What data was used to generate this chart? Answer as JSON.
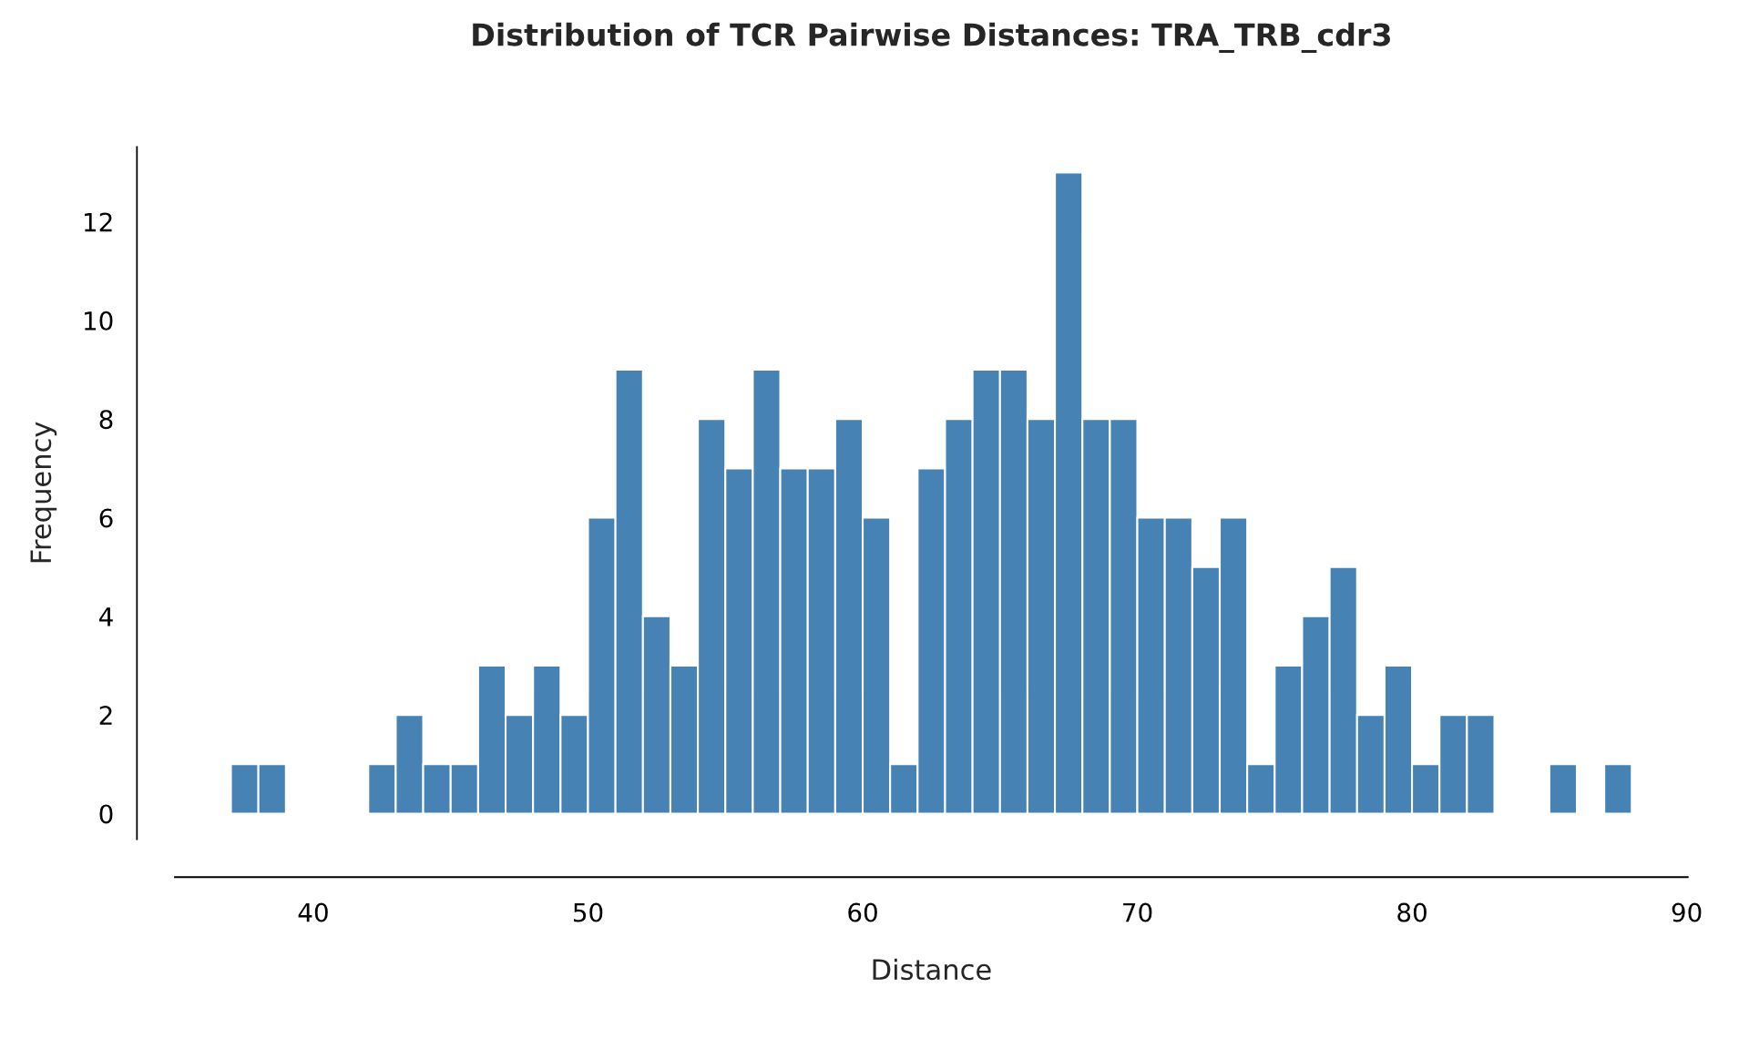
{
  "chart_data": {
    "type": "histogram",
    "title": "Distribution of TCR Pairwise Distances: TRA_TRB_cdr3",
    "xlabel": "Distance",
    "ylabel": "Frequency",
    "bins": [
      37,
      38,
      39,
      40,
      41,
      42,
      43,
      44,
      45,
      46,
      47,
      48,
      49,
      50,
      51,
      52,
      53,
      54,
      55,
      56,
      57,
      58,
      59,
      60,
      61,
      62,
      63,
      64,
      65,
      66,
      67,
      68,
      69,
      70,
      71,
      72,
      73,
      74,
      75,
      76,
      77,
      78,
      79,
      80,
      81,
      82,
      83,
      84,
      85,
      86,
      87,
      88
    ],
    "values": [
      1,
      1,
      0,
      0,
      0,
      1,
      2,
      1,
      1,
      3,
      2,
      3,
      2,
      6,
      9,
      4,
      3,
      8,
      7,
      9,
      7,
      7,
      8,
      6,
      1,
      7,
      8,
      9,
      9,
      8,
      13,
      8,
      8,
      6,
      6,
      5,
      6,
      1,
      3,
      4,
      5,
      2,
      3,
      1,
      2,
      2,
      0,
      0,
      1,
      0,
      1
    ],
    "color": "#4682b4",
    "xlim": [
      34.96,
      90.04
    ],
    "ylim": [
      -0.52,
      13.52
    ],
    "xticks": [
      40,
      50,
      60,
      70,
      80,
      90
    ],
    "yticks": [
      0,
      2,
      4,
      6,
      8,
      10,
      12
    ],
    "grid": false
  }
}
